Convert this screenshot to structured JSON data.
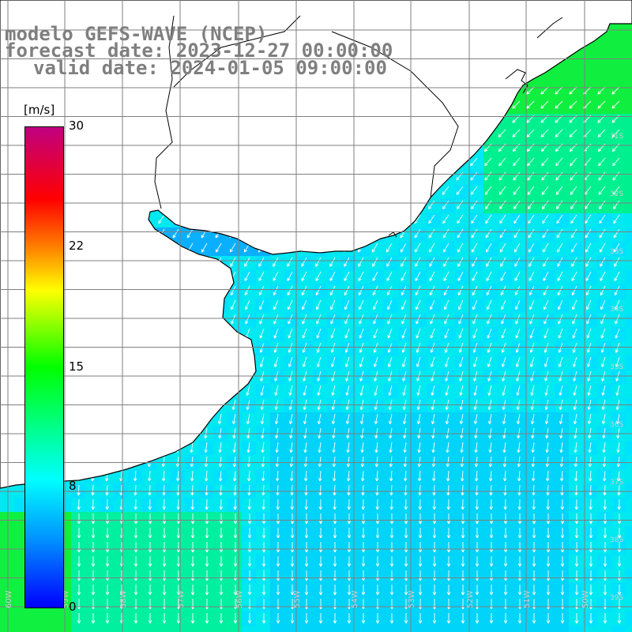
{
  "title": {
    "line1": "modelo GEFS-WAVE (NCEP)",
    "line2": "forecast date: 2023-12-27 00:00:00",
    "line3": "valid date: 2024-01-05 09:00:00"
  },
  "colorbar": {
    "unit": "[m/s]",
    "ticks": [
      "30",
      "22",
      "15",
      "8",
      "0"
    ],
    "colors": [
      "#0000ff",
      "#0090ff",
      "#00ffff",
      "#00ff00",
      "#ffff00",
      "#ff8000",
      "#ff0000",
      "#c00080"
    ]
  },
  "map": {
    "land_color": "#ffffff",
    "grid_color": "#7f7f7f",
    "arrow_color": "#ffffff",
    "field": "surface wind speed with direction arrows",
    "prevailing_direction": "from north-east in the north, from north in the south"
  },
  "lon_labels": [
    "60W",
    "59W",
    "58W",
    "57W",
    "56W",
    "55W",
    "54W",
    "53W",
    "52W",
    "51W",
    "50W"
  ],
  "lat_labels": [
    "31S",
    "32S",
    "33S",
    "34S",
    "35S",
    "36S",
    "37S",
    "38S",
    "39S",
    "40S"
  ]
}
